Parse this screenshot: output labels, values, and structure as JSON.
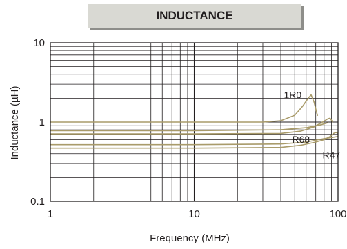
{
  "chart_data": {
    "type": "line",
    "title": "INDUCTANCE",
    "xlabel": "Frequency (MHz)",
    "ylabel": "Inductance (µH)",
    "xscale": "log",
    "yscale": "log",
    "xlim": [
      1,
      100
    ],
    "ylim": [
      0.1,
      10
    ],
    "xticks": [
      {
        "value": 1,
        "label": "1"
      },
      {
        "value": 10,
        "label": "10"
      },
      {
        "value": 100,
        "label": "100"
      }
    ],
    "yticks": [
      {
        "value": 0.1,
        "label": "0.1"
      },
      {
        "value": 1,
        "label": "1"
      },
      {
        "value": 10,
        "label": "10"
      }
    ],
    "grid": true,
    "series_color": "#a99b6a",
    "series": [
      {
        "name": "1R0",
        "x": [
          1,
          10,
          30,
          40,
          50,
          57,
          62,
          65,
          68,
          72
        ],
        "y": [
          1.0,
          1.0,
          1.0,
          1.04,
          1.22,
          1.6,
          2.0,
          2.2,
          1.8,
          1.2
        ]
      },
      {
        "name": "R68",
        "x": [
          1,
          10,
          40,
          55,
          68,
          78,
          85,
          88,
          92
        ],
        "y": [
          0.71,
          0.71,
          0.72,
          0.77,
          0.87,
          1.0,
          1.1,
          1.12,
          1.0
        ]
      },
      {
        "name": "R47",
        "x": [
          1,
          10,
          40,
          55,
          70,
          80,
          88,
          93,
          97,
          100
        ],
        "y": [
          0.47,
          0.47,
          0.48,
          0.51,
          0.56,
          0.6,
          0.66,
          0.72,
          0.74,
          0.72
        ]
      },
      {
        "x": [
          1,
          10,
          40,
          60,
          80,
          100
        ],
        "y": [
          0.52,
          0.52,
          0.53,
          0.56,
          0.62,
          0.66
        ]
      },
      {
        "x": [
          1,
          10,
          40,
          60,
          75,
          85
        ],
        "y": [
          0.78,
          0.78,
          0.8,
          0.85,
          0.92,
          0.98
        ]
      }
    ],
    "labels": [
      {
        "text": "1R0",
        "x": 42,
        "y": 2.0
      },
      {
        "text": "R68",
        "x": 48,
        "y": 0.55
      },
      {
        "text": "R47",
        "x": 78,
        "y": 0.35
      }
    ]
  }
}
